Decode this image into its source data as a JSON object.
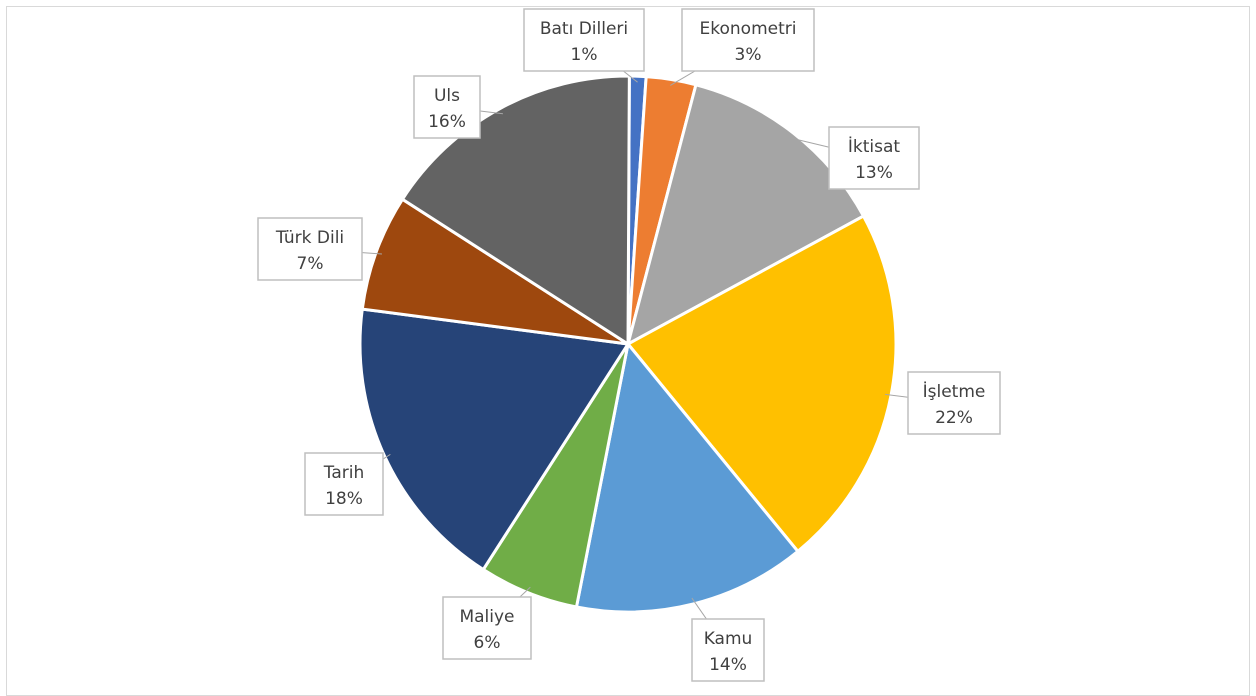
{
  "chart_data": {
    "type": "pie",
    "categories": [
      "Batı Dilleri",
      "Ekonometri",
      "İktisat",
      "İşletme",
      "Kamu",
      "Maliye",
      "Tarih",
      "Türk Dili",
      "Uls"
    ],
    "values": [
      1,
      3,
      13,
      22,
      14,
      6,
      18,
      7,
      16
    ],
    "labels": [
      "1%",
      "3%",
      "13%",
      "22%",
      "14%",
      "6%",
      "18%",
      "7%",
      "16%"
    ],
    "colors": [
      "#4472c4",
      "#ed7d31",
      "#a5a5a5",
      "#ffc000",
      "#5b9bd5",
      "#70ad47",
      "#264478",
      "#9e480e",
      "#636363"
    ],
    "title": "",
    "legend": "none"
  }
}
